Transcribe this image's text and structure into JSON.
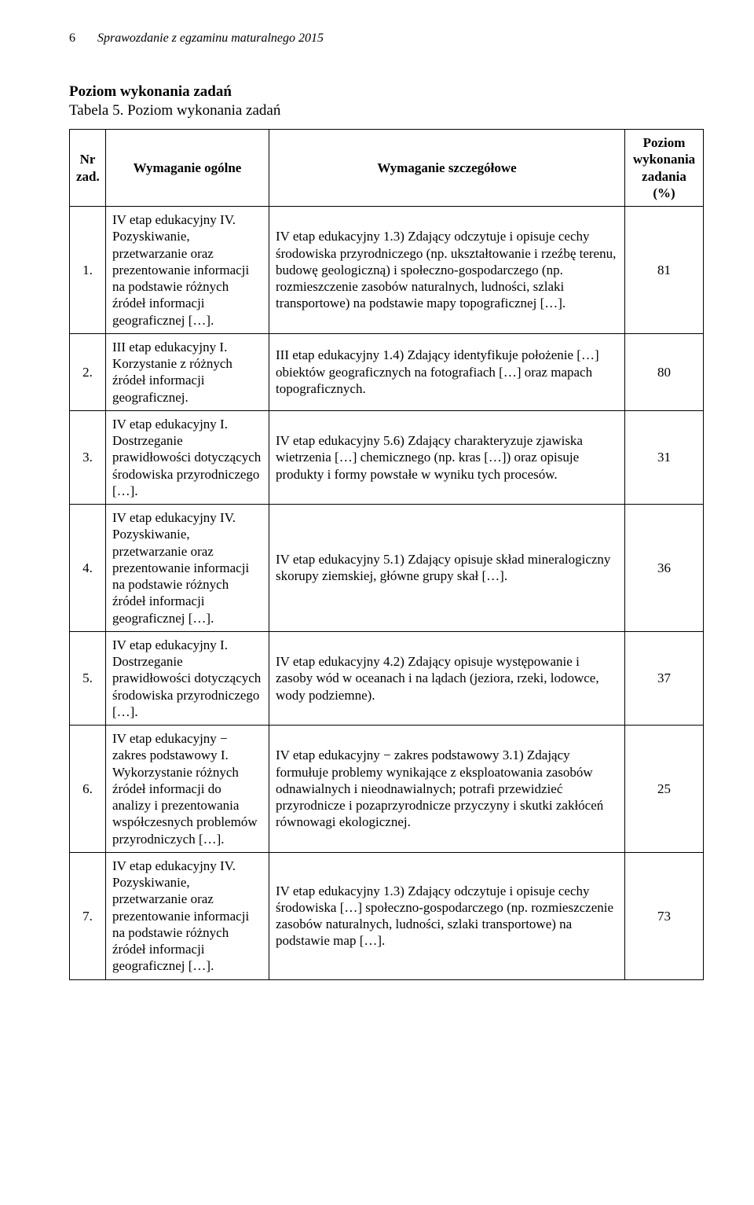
{
  "header": {
    "page_number": "6",
    "title": "Sprawozdanie z egzaminu maturalnego 2015"
  },
  "section": {
    "title": "Poziom wykonania zadań",
    "caption": "Tabela 5. Poziom wykonania zadań"
  },
  "table": {
    "columns": {
      "nr": "Nr zad.",
      "ogolne": "Wymaganie ogólne",
      "szczegolowe": "Wymaganie szczegółowe",
      "poziom": "Poziom wykonania zadania (%)"
    },
    "rows": [
      {
        "nr": "1.",
        "ogolne": "IV etap edukacyjny\nIV. Pozyskiwanie, przetwarzanie oraz prezentowanie informacji na podstawie różnych źródeł informacji geograficznej […].",
        "szczegolowe": "IV etap edukacyjny\n1.3) Zdający odczytuje i opisuje cechy środowiska przyrodniczego (np. ukształtowanie i rzeźbę terenu, budowę geologiczną) i społeczno-gospodarczego (np. rozmieszczenie zasobów naturalnych, ludności, szlaki transportowe) na podstawie mapy topograficznej […].",
        "poziom": "81"
      },
      {
        "nr": "2.",
        "ogolne": "III etap edukacyjny\nI. Korzystanie z różnych źródeł informacji geograficznej.",
        "szczegolowe": "III etap edukacyjny\n1.4) Zdający identyfikuje położenie […] obiektów geograficznych na fotografiach […] oraz mapach topograficznych.",
        "poziom": "80"
      },
      {
        "nr": "3.",
        "ogolne": "IV etap edukacyjny\nI. Dostrzeganie prawidłowości dotyczących środowiska przyrodniczego […].",
        "szczegolowe": "IV etap edukacyjny\n5.6) Zdający charakteryzuje zjawiska wietrzenia […] chemicznego (np. kras […]) oraz opisuje produkty i formy powstałe w wyniku tych procesów.",
        "poziom": "31"
      },
      {
        "nr": "4.",
        "ogolne": "IV etap edukacyjny\nIV. Pozyskiwanie, przetwarzanie oraz prezentowanie informacji na podstawie różnych źródeł informacji geograficznej […].",
        "szczegolowe": "IV etap edukacyjny\n5.1) Zdający opisuje skład mineralogiczny skorupy ziemskiej, główne grupy skał […].",
        "poziom": "36"
      },
      {
        "nr": "5.",
        "ogolne": "IV etap edukacyjny\nI. Dostrzeganie prawidłowości dotyczących środowiska przyrodniczego […].",
        "szczegolowe": "IV etap edukacyjny\n4.2) Zdający opisuje występowanie i zasoby wód w oceanach i na lądach (jeziora, rzeki, lodowce, wody podziemne).",
        "poziom": "37"
      },
      {
        "nr": "6.",
        "ogolne": "IV etap edukacyjny − zakres podstawowy\nI. Wykorzystanie różnych źródeł informacji do analizy i prezentowania współczesnych problemów przyrodniczych […].",
        "szczegolowe": "IV etap edukacyjny − zakres podstawowy\n3.1) Zdający formułuje problemy wynikające z eksploatowania zasobów odnawialnych i nieodnawialnych; potrafi przewidzieć przyrodnicze i pozaprzyrodnicze przyczyny i skutki zakłóceń równowagi ekologicznej.",
        "poziom": "25"
      },
      {
        "nr": "7.",
        "ogolne": "IV etap edukacyjny\nIV. Pozyskiwanie, przetwarzanie oraz prezentowanie informacji na podstawie różnych źródeł informacji geograficznej […].",
        "szczegolowe": "IV etap edukacyjny\n1.3) Zdający odczytuje i opisuje cechy środowiska […] społeczno-gospodarczego (np. rozmieszczenie zasobów naturalnych, ludności, szlaki transportowe) na podstawie map […].",
        "poziom": "73"
      }
    ]
  }
}
